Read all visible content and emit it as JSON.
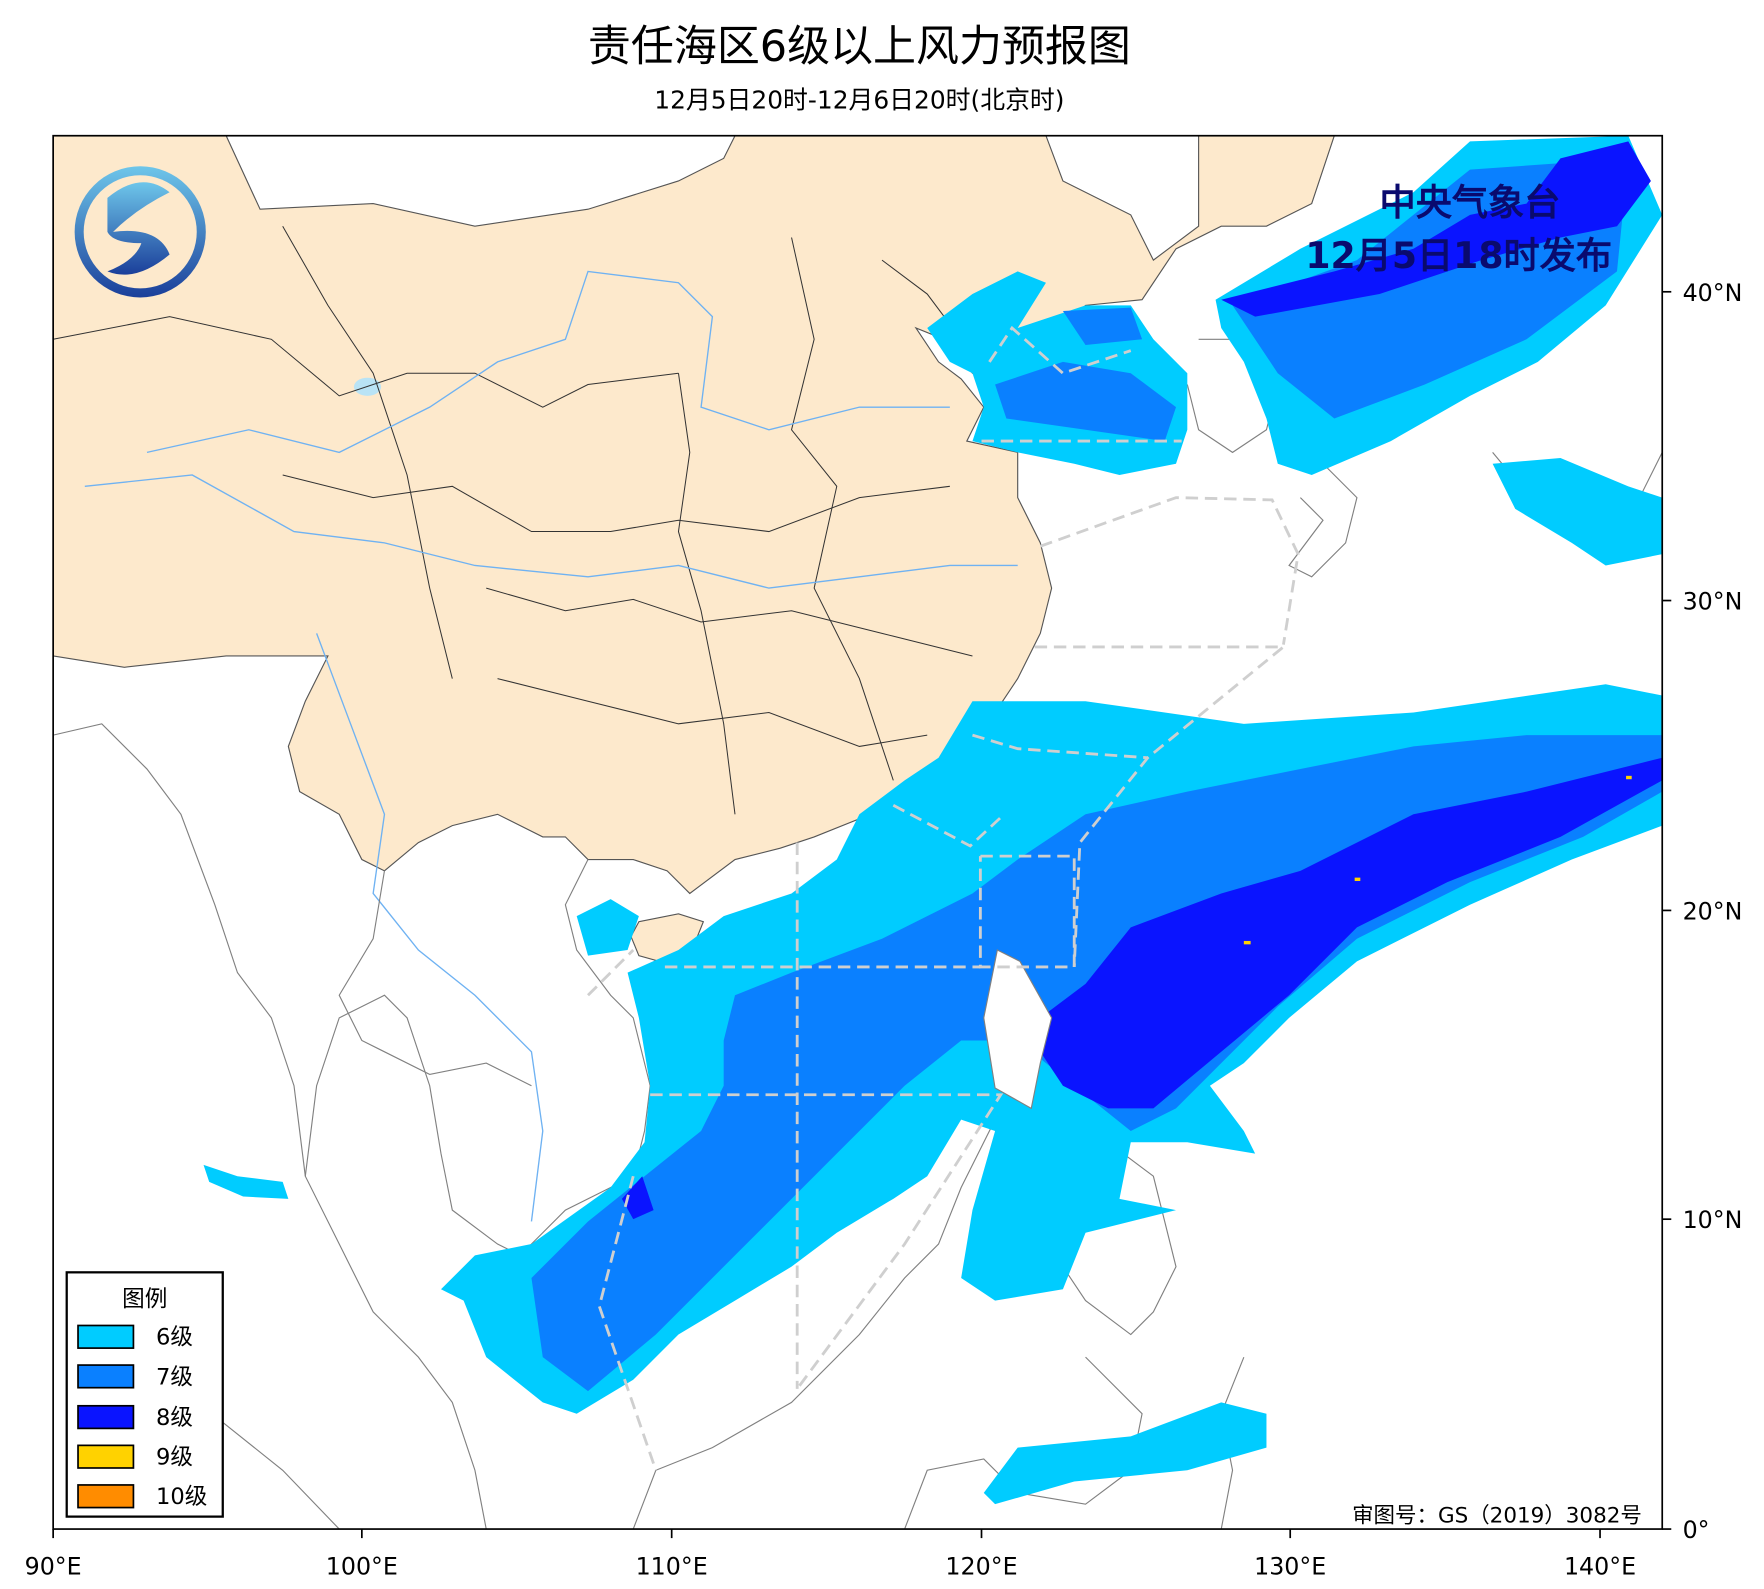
{
  "title": "责任海区6级以上风力预报图",
  "subtitle": "12月5日20时-12月6日20时(北京时)",
  "publisher": {
    "name": "中央气象台",
    "issued": "12月5日18时发布",
    "text_color": "#0a0a6e"
  },
  "approval_number": "审图号：GS（2019）3082号",
  "axes": {
    "x_ticks": [
      "90°E",
      "100°E",
      "110°E",
      "120°E",
      "130°E",
      "140°E"
    ],
    "y_ticks": [
      "0°",
      "10°N",
      "20°N",
      "30°N",
      "40°N"
    ]
  },
  "legend": {
    "title": "图例",
    "items": [
      {
        "label": "6级",
        "color": "#00ccff"
      },
      {
        "label": "7级",
        "color": "#0a80ff"
      },
      {
        "label": "8级",
        "color": "#0a14ff"
      },
      {
        "label": "9级",
        "color": "#ffd200"
      },
      {
        "label": "10级",
        "color": "#ff8c00"
      }
    ]
  },
  "colors": {
    "china_land": "#fde9cc",
    "ocean": "#ffffff",
    "zone_boundary": "#cfcfcf"
  },
  "logo_icon": "cma-logo"
}
